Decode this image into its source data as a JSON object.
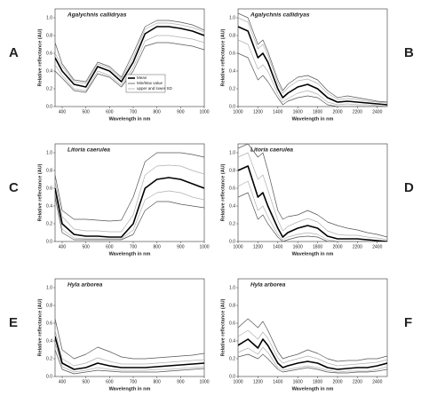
{
  "chart_data": [
    {
      "type": "line",
      "label": "A",
      "title": "Agalychnis callidryas",
      "x_label": "Wavelength in nm",
      "y_label": "Relative reflectance (AU)",
      "x": [
        370,
        400,
        450,
        500,
        550,
        600,
        650,
        700,
        750,
        800,
        850,
        900,
        950,
        1000
      ],
      "xlim": [
        370,
        1000
      ],
      "xticks": [
        400,
        500,
        600,
        700,
        800,
        900,
        1000
      ],
      "ylim": [
        0,
        1.1
      ],
      "yticks": [
        {
          "value": 0,
          "label": "0.0"
        },
        0.2,
        0.4,
        0.6,
        0.8,
        {
          "value": 1,
          "label": "1.0"
        }
      ],
      "legend": "lower right",
      "series": [
        {
          "name": "Mean",
          "color": "#000000",
          "values": [
            0.55,
            0.4,
            0.25,
            0.22,
            0.45,
            0.4,
            0.28,
            0.5,
            0.82,
            0.9,
            0.9,
            0.88,
            0.85,
            0.8
          ]
        },
        {
          "name": "Min/Max value",
          "color": "#555555",
          "values": [
            0.72,
            0.48,
            0.3,
            0.28,
            0.5,
            0.45,
            0.33,
            0.6,
            0.9,
            0.97,
            0.97,
            0.95,
            0.92,
            0.86
          ],
          "low": [
            0.4,
            0.32,
            0.18,
            0.16,
            0.37,
            0.33,
            0.22,
            0.4,
            0.68,
            0.72,
            0.72,
            0.7,
            0.68,
            0.64
          ]
        },
        {
          "name": "upper and lower SD",
          "color": "#b0b0b0",
          "values": [
            0.6,
            0.45,
            0.28,
            0.26,
            0.48,
            0.43,
            0.31,
            0.55,
            0.87,
            0.94,
            0.94,
            0.92,
            0.89,
            0.84
          ],
          "low": [
            0.47,
            0.35,
            0.2,
            0.18,
            0.4,
            0.35,
            0.24,
            0.44,
            0.74,
            0.8,
            0.8,
            0.78,
            0.76,
            0.72
          ]
        }
      ]
    },
    {
      "type": "line",
      "label": "B",
      "title": "Agalychnis callidryas",
      "x_label": "Wavelength in nm",
      "y_label": "Relative reflectance (AU)",
      "x": [
        1000,
        1100,
        1200,
        1250,
        1300,
        1400,
        1450,
        1500,
        1600,
        1700,
        1800,
        1900,
        2000,
        2100,
        2200,
        2300,
        2400,
        2500
      ],
      "xlim": [
        1000,
        2500
      ],
      "xticks": [
        1000,
        1200,
        1400,
        1600,
        1800,
        2000,
        2200,
        2400
      ],
      "ylim": [
        0,
        1.1
      ],
      "yticks": [
        {
          "value": 0,
          "label": "0.0"
        },
        0.2,
        0.4,
        0.6,
        0.8,
        {
          "value": 1,
          "label": "1.0"
        }
      ],
      "series": [
        {
          "color": "#000000",
          "values": [
            0.9,
            0.85,
            0.55,
            0.6,
            0.5,
            0.2,
            0.1,
            0.15,
            0.22,
            0.25,
            0.2,
            0.1,
            0.05,
            0.06,
            0.05,
            0.04,
            0.03,
            0.02
          ]
        },
        {
          "color": "#555555",
          "values": [
            1.05,
            1.0,
            0.7,
            0.75,
            0.62,
            0.3,
            0.18,
            0.25,
            0.33,
            0.35,
            0.3,
            0.18,
            0.1,
            0.12,
            0.1,
            0.08,
            0.06,
            0.05
          ],
          "low": [
            0.6,
            0.55,
            0.3,
            0.35,
            0.28,
            0.1,
            0.02,
            0.06,
            0.1,
            0.12,
            0.1,
            0.02,
            0,
            0,
            0,
            0,
            0,
            0
          ]
        },
        {
          "color": "#b0b0b0",
          "values": [
            1.0,
            0.95,
            0.65,
            0.7,
            0.58,
            0.26,
            0.15,
            0.21,
            0.29,
            0.31,
            0.26,
            0.15,
            0.08,
            0.09,
            0.08,
            0.06,
            0.05,
            0.04
          ],
          "low": [
            0.75,
            0.7,
            0.42,
            0.47,
            0.4,
            0.14,
            0.05,
            0.09,
            0.15,
            0.18,
            0.14,
            0.05,
            0.02,
            0.03,
            0.02,
            0.02,
            0.01,
            0
          ]
        }
      ]
    },
    {
      "type": "line",
      "label": "C",
      "title": "Litoria caerulea",
      "x_label": "Wavelength in nm",
      "y_label": "Relative reflectance (AU)",
      "x": [
        370,
        400,
        450,
        500,
        550,
        600,
        650,
        700,
        750,
        800,
        850,
        900,
        950,
        1000
      ],
      "xlim": [
        370,
        1000
      ],
      "xticks": [
        400,
        500,
        600,
        700,
        800,
        900,
        1000
      ],
      "ylim": [
        0,
        1.1
      ],
      "yticks": [
        {
          "value": 0,
          "label": "0.0"
        },
        0.2,
        0.4,
        0.6,
        0.8,
        {
          "value": 1,
          "label": "1.0"
        }
      ],
      "series": [
        {
          "color": "#000000",
          "values": [
            0.6,
            0.2,
            0.08,
            0.06,
            0.06,
            0.05,
            0.05,
            0.2,
            0.6,
            0.7,
            0.72,
            0.7,
            0.65,
            0.6
          ]
        },
        {
          "color": "#555555",
          "values": [
            0.75,
            0.35,
            0.25,
            0.25,
            0.24,
            0.23,
            0.24,
            0.5,
            0.9,
            1.0,
            1.0,
            1.0,
            0.98,
            0.95
          ],
          "low": [
            0.5,
            0.1,
            0.02,
            0.02,
            0.02,
            0.02,
            0.02,
            0.08,
            0.35,
            0.45,
            0.45,
            0.42,
            0.4,
            0.38
          ]
        },
        {
          "color": "#b0b0b0",
          "values": [
            0.68,
            0.28,
            0.14,
            0.12,
            0.12,
            0.11,
            0.11,
            0.3,
            0.75,
            0.85,
            0.86,
            0.85,
            0.8,
            0.76
          ],
          "low": [
            0.55,
            0.14,
            0.04,
            0.03,
            0.03,
            0.03,
            0.03,
            0.13,
            0.47,
            0.55,
            0.57,
            0.55,
            0.5,
            0.47
          ]
        }
      ]
    },
    {
      "type": "line",
      "label": "D",
      "title": "Litoria caerulea",
      "x_label": "Wavelength in nm",
      "y_label": "Relative reflectance (AU)",
      "x": [
        1000,
        1100,
        1200,
        1250,
        1300,
        1400,
        1450,
        1500,
        1600,
        1700,
        1800,
        1900,
        2000,
        2100,
        2200,
        2300,
        2400,
        2500
      ],
      "xlim": [
        1000,
        2500
      ],
      "xticks": [
        1000,
        1200,
        1400,
        1600,
        1800,
        2000,
        2200,
        2400
      ],
      "ylim": [
        0,
        1.1
      ],
      "yticks": [
        {
          "value": 0,
          "label": "0.0"
        },
        0.2,
        0.4,
        0.6,
        0.8,
        {
          "value": 1,
          "label": "1.0"
        }
      ],
      "series": [
        {
          "color": "#000000",
          "values": [
            0.8,
            0.85,
            0.5,
            0.55,
            0.4,
            0.15,
            0.05,
            0.1,
            0.15,
            0.18,
            0.15,
            0.06,
            0.03,
            0.03,
            0.03,
            0.02,
            0.01,
            0
          ]
        },
        {
          "color": "#555555",
          "values": [
            1.05,
            1.1,
            0.95,
            1.0,
            0.8,
            0.35,
            0.25,
            0.28,
            0.3,
            0.35,
            0.3,
            0.22,
            0.18,
            0.15,
            0.13,
            0.1,
            0.08,
            0.05
          ],
          "low": [
            0.5,
            0.55,
            0.25,
            0.3,
            0.2,
            0.05,
            0,
            0.02,
            0.05,
            0.06,
            0.05,
            0,
            0,
            0,
            0,
            0,
            0,
            0
          ]
        },
        {
          "color": "#b0b0b0",
          "values": [
            0.95,
            1.0,
            0.7,
            0.75,
            0.58,
            0.24,
            0.12,
            0.17,
            0.22,
            0.26,
            0.22,
            0.12,
            0.08,
            0.07,
            0.07,
            0.05,
            0.04,
            0.02
          ],
          "low": [
            0.62,
            0.68,
            0.35,
            0.4,
            0.28,
            0.08,
            0.02,
            0.05,
            0.08,
            0.1,
            0.08,
            0.02,
            0,
            0,
            0,
            0,
            0,
            0
          ]
        }
      ]
    },
    {
      "type": "line",
      "label": "E",
      "title": "Hyla arborea",
      "x_label": "Wavelength in nm",
      "y_label": "Relative reflectance (AU)",
      "x": [
        370,
        400,
        450,
        500,
        550,
        600,
        650,
        700,
        750,
        800,
        850,
        900,
        950,
        1000
      ],
      "xlim": [
        370,
        1000
      ],
      "xticks": [
        400,
        500,
        600,
        700,
        800,
        900,
        1000
      ],
      "ylim": [
        0,
        1.1
      ],
      "yticks": [
        {
          "value": 0,
          "label": "0.0"
        },
        0.2,
        0.4,
        0.6,
        0.8,
        {
          "value": 1,
          "label": "1.0"
        }
      ],
      "series": [
        {
          "color": "#000000",
          "values": [
            0.45,
            0.15,
            0.08,
            0.1,
            0.15,
            0.12,
            0.1,
            0.1,
            0.1,
            0.11,
            0.12,
            0.13,
            0.14,
            0.15
          ]
        },
        {
          "color": "#555555",
          "values": [
            0.65,
            0.3,
            0.2,
            0.25,
            0.33,
            0.28,
            0.22,
            0.2,
            0.2,
            0.21,
            0.22,
            0.23,
            0.24,
            0.26
          ],
          "low": [
            0.3,
            0.08,
            0.03,
            0.05,
            0.07,
            0.06,
            0.05,
            0.05,
            0.05,
            0.05,
            0.06,
            0.07,
            0.08,
            0.09
          ]
        },
        {
          "color": "#b0b0b0",
          "values": [
            0.52,
            0.2,
            0.12,
            0.15,
            0.21,
            0.17,
            0.14,
            0.14,
            0.14,
            0.15,
            0.16,
            0.17,
            0.18,
            0.19
          ],
          "low": [
            0.38,
            0.11,
            0.05,
            0.07,
            0.1,
            0.08,
            0.07,
            0.07,
            0.07,
            0.08,
            0.08,
            0.09,
            0.1,
            0.11
          ]
        }
      ]
    },
    {
      "type": "line",
      "label": "F",
      "title": "Hyla arborea",
      "x_label": "Wavelength in nm",
      "y_label": "Relative reflectance (AU)",
      "x": [
        1000,
        1100,
        1200,
        1250,
        1300,
        1400,
        1450,
        1500,
        1600,
        1700,
        1800,
        1900,
        2000,
        2100,
        2200,
        2300,
        2400,
        2500
      ],
      "xlim": [
        1000,
        2500
      ],
      "xticks": [
        1000,
        1200,
        1400,
        1600,
        1800,
        2000,
        2200,
        2400
      ],
      "ylim": [
        0,
        1.1
      ],
      "yticks": [
        {
          "value": 0,
          "label": "0.0"
        },
        0.2,
        0.4,
        0.6,
        0.8,
        {
          "value": 1,
          "label": "1.0"
        }
      ],
      "series": [
        {
          "color": "#000000",
          "values": [
            0.35,
            0.42,
            0.32,
            0.42,
            0.35,
            0.15,
            0.1,
            0.12,
            0.15,
            0.17,
            0.15,
            0.1,
            0.08,
            0.09,
            0.1,
            0.1,
            0.12,
            0.15
          ]
        },
        {
          "color": "#555555",
          "values": [
            0.55,
            0.65,
            0.55,
            0.62,
            0.52,
            0.28,
            0.2,
            0.22,
            0.25,
            0.3,
            0.26,
            0.2,
            0.17,
            0.18,
            0.18,
            0.2,
            0.2,
            0.23
          ],
          "low": [
            0.22,
            0.25,
            0.2,
            0.25,
            0.2,
            0.08,
            0.05,
            0.06,
            0.08,
            0.1,
            0.08,
            0.05,
            0.04,
            0.04,
            0.05,
            0.05,
            0.06,
            0.08
          ]
        },
        {
          "color": "#b0b0b0",
          "values": [
            0.45,
            0.52,
            0.42,
            0.5,
            0.43,
            0.21,
            0.15,
            0.17,
            0.2,
            0.23,
            0.2,
            0.15,
            0.12,
            0.13,
            0.14,
            0.15,
            0.16,
            0.19
          ],
          "low": [
            0.27,
            0.32,
            0.25,
            0.33,
            0.27,
            0.1,
            0.07,
            0.08,
            0.1,
            0.12,
            0.1,
            0.07,
            0.05,
            0.06,
            0.06,
            0.06,
            0.08,
            0.11
          ]
        }
      ]
    }
  ]
}
